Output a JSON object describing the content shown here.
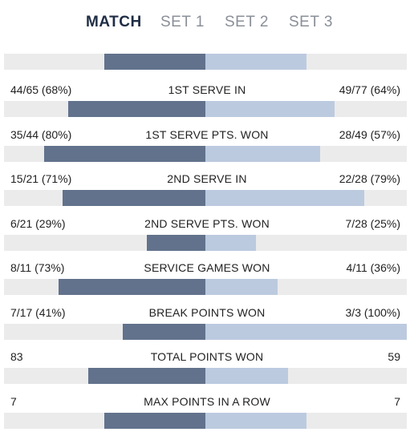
{
  "tabs": [
    {
      "label": "MATCH",
      "active": true
    },
    {
      "label": "SET 1",
      "active": false
    },
    {
      "label": "SET 2",
      "active": false
    },
    {
      "label": "SET 3",
      "active": false
    }
  ],
  "colors": {
    "left_bar": "#62728c",
    "right_bar": "#bccadf",
    "track": "#ebebeb",
    "active_tab": "#1f2d45",
    "inactive_tab": "#8a8f99"
  },
  "stats": [
    {
      "label": "",
      "left": "",
      "right": "",
      "left_pct": 0.5,
      "right_pct": 0.5
    },
    {
      "label": "1ST SERVE IN",
      "left": "44/65 (68%)",
      "right": "49/77 (64%)",
      "left_pct": 0.68,
      "right_pct": 0.64
    },
    {
      "label": "1ST SERVE PTS. WON",
      "left": "35/44 (80%)",
      "right": "28/49 (57%)",
      "left_pct": 0.8,
      "right_pct": 0.57
    },
    {
      "label": "2ND SERVE IN",
      "left": "15/21 (71%)",
      "right": "22/28 (79%)",
      "left_pct": 0.71,
      "right_pct": 0.79
    },
    {
      "label": "2ND SERVE PTS. WON",
      "left": "6/21 (29%)",
      "right": "7/28 (25%)",
      "left_pct": 0.29,
      "right_pct": 0.25
    },
    {
      "label": "SERVICE GAMES WON",
      "left": "8/11 (73%)",
      "right": "4/11 (36%)",
      "left_pct": 0.73,
      "right_pct": 0.36
    },
    {
      "label": "BREAK POINTS WON",
      "left": "7/17 (41%)",
      "right": "3/3 (100%)",
      "left_pct": 0.41,
      "right_pct": 1.0
    },
    {
      "label": "TOTAL POINTS WON",
      "left": "83",
      "right": "59",
      "left_pct": 0.58,
      "right_pct": 0.41
    },
    {
      "label": "MAX POINTS IN A ROW",
      "left": "7",
      "right": "7",
      "left_pct": 0.5,
      "right_pct": 0.5
    }
  ]
}
